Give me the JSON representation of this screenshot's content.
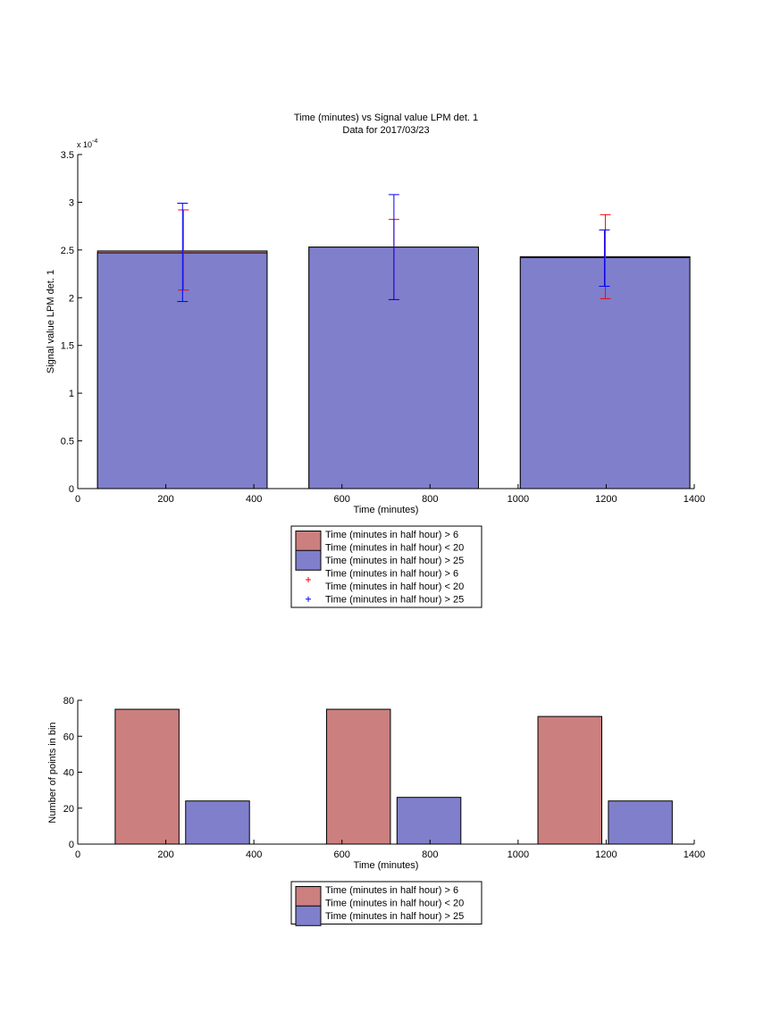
{
  "chart_data": [
    {
      "type": "bar",
      "title": "Time (minutes) vs Signal value LPM det. 1",
      "subtitle": "Data for 2017/03/23",
      "xlabel": "Time (minutes)",
      "ylabel": "Signal value LPM det. 1",
      "xlim": [
        0,
        1400
      ],
      "ylim": [
        0,
        3.5
      ],
      "y_exponent_label": "x 10",
      "y_exponent_power": "-4",
      "x_ticks": [
        0,
        200,
        400,
        600,
        800,
        1000,
        1200,
        1400
      ],
      "y_ticks": [
        0,
        0.5,
        1,
        1.5,
        2,
        2.5,
        3,
        3.5
      ],
      "y_tick_labels": [
        "0",
        "0.5",
        "1",
        "1.5",
        "2",
        "2.5",
        "3",
        "3.5"
      ],
      "grid": false,
      "bins": [
        {
          "x_start": 45,
          "x_end": 430
        },
        {
          "x_start": 525,
          "x_end": 910
        },
        {
          "x_start": 1005,
          "x_end": 1390
        }
      ],
      "series": [
        {
          "name": "Time (minutes in half hour) > 6\nTime (minutes in half hour) < 20",
          "color": "#cc7f7f",
          "values": [
            2.49,
            2.53,
            2.43
          ],
          "error_color": "#ff0000",
          "error_x": [
            240,
            718,
            1198
          ],
          "error_low": [
            2.08,
            1.98,
            1.99
          ],
          "error_high": [
            2.92,
            2.82,
            2.87
          ]
        },
        {
          "name": "Time (minutes in half hour) > 25",
          "color": "#7f7fcc",
          "values": [
            2.47,
            2.53,
            2.42
          ],
          "error_color": "#0000ff",
          "error_x": [
            238,
            718,
            1196
          ],
          "error_low": [
            1.96,
            1.98,
            2.12
          ],
          "error_high": [
            2.99,
            3.08,
            2.71
          ]
        }
      ],
      "legend": {
        "placement": "below",
        "entries": [
          {
            "lines": [
              "Time (minutes in half hour) > 6",
              "Time (minutes in half hour) < 20"
            ],
            "kind": "patch",
            "color": "#cc7f7f"
          },
          {
            "lines": [
              "Time (minutes in half hour) > 25"
            ],
            "kind": "patch",
            "color": "#7f7fcc"
          },
          {
            "lines": [
              "Time (minutes in half hour) > 6",
              "Time (minutes in half hour) < 20"
            ],
            "kind": "marker",
            "color": "#ff0000"
          },
          {
            "lines": [
              "Time (minutes in half hour) > 25"
            ],
            "kind": "marker",
            "color": "#0000ff"
          }
        ]
      }
    },
    {
      "type": "bar",
      "xlabel": "Time (minutes)",
      "ylabel": "Number of points in bin",
      "xlim": [
        0,
        1400
      ],
      "ylim": [
        0,
        80
      ],
      "x_ticks": [
        0,
        200,
        400,
        600,
        800,
        1000,
        1200,
        1400
      ],
      "y_ticks": [
        0,
        20,
        40,
        60,
        80
      ],
      "grid": false,
      "bars": [
        {
          "x_start": 85,
          "x_end": 230,
          "value": 75,
          "color": "#cc7f7f"
        },
        {
          "x_start": 245,
          "x_end": 390,
          "value": 24,
          "color": "#7f7fcc"
        },
        {
          "x_start": 565,
          "x_end": 710,
          "value": 75,
          "color": "#cc7f7f"
        },
        {
          "x_start": 725,
          "x_end": 870,
          "value": 26,
          "color": "#7f7fcc"
        },
        {
          "x_start": 1045,
          "x_end": 1190,
          "value": 71,
          "color": "#cc7f7f"
        },
        {
          "x_start": 1205,
          "x_end": 1350,
          "value": 24,
          "color": "#7f7fcc"
        }
      ],
      "legend": {
        "placement": "below",
        "entries": [
          {
            "lines": [
              "Time (minutes in half hour) > 6",
              "Time (minutes in half hour) < 20"
            ],
            "kind": "patch",
            "color": "#cc7f7f"
          },
          {
            "lines": [
              "Time (minutes in half hour) > 25"
            ],
            "kind": "patch",
            "color": "#7f7fcc"
          }
        ]
      }
    }
  ]
}
